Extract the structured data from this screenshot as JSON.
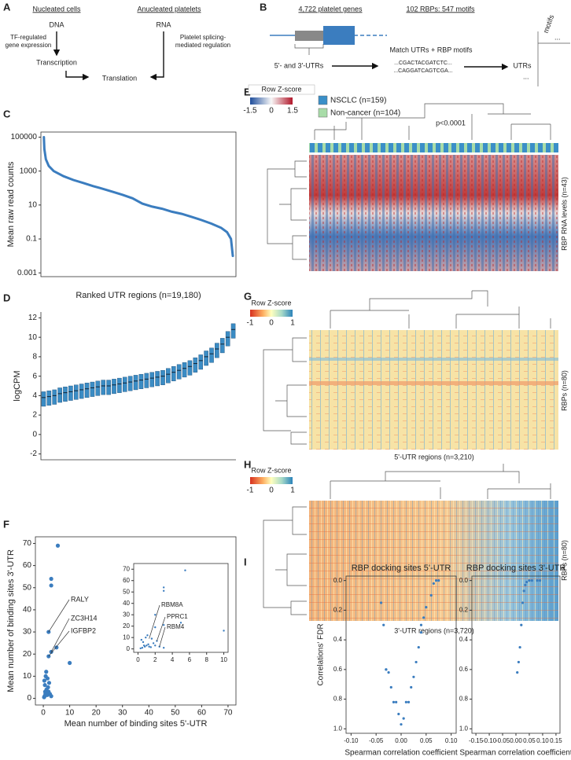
{
  "panel_labels": [
    "A",
    "B",
    "C",
    "D",
    "E",
    "F",
    "G",
    "H",
    "I"
  ],
  "diagram_a": {
    "left_title": "Nucleated cells",
    "right_title": "Anucleated platelets",
    "left_node": "DNA",
    "right_node": "RNA",
    "left_note": [
      "TF-regulated",
      "gene expression"
    ],
    "right_note": [
      "Platelet splicing-",
      "mediated regulation"
    ],
    "middle_node": "Transcription",
    "bottom_node": "Translation"
  },
  "diagram_b": {
    "genes": "4,722 platelet genes",
    "motifs_title": "102 RBPs: 547 motifs",
    "utrs": "5'- and 3'-UTRs",
    "match": "Match UTRs + RBP motifs",
    "sequences": [
      "...CGACTACGATCTC...",
      "...CAGGATCAGTCGA..."
    ],
    "matrix_rows": "UTRs",
    "matrix_cols": "motifs"
  },
  "heatmap_e": {
    "colorbar_title": "Row Z-score",
    "colorbar_ticks": [
      -1.5,
      0,
      1.5
    ],
    "legend": [
      {
        "name": "NSCLC (n=159)",
        "color": "#3a8fc8"
      },
      {
        "name": "Non-cancer (n=104)",
        "color": "#a8dca8"
      }
    ],
    "pvalue": "p<0.0001",
    "row_label": "RBP RNA levels (n=43)"
  },
  "heatmap_g": {
    "colorbar_title": "Row Z-score",
    "colorbar_ticks": [
      -1,
      0,
      1
    ],
    "row_label": "RBPs (n=80)",
    "column_label": "5'-UTR regions (n=3,210)"
  },
  "heatmap_h": {
    "colorbar_title": "Row Z-score",
    "colorbar_ticks": [
      -1,
      0,
      1
    ],
    "row_label": "RBPs (n=80)",
    "column_label": "3'-UTR regions (n=3,720)"
  },
  "chart_data": [
    {
      "type": "line",
      "ylabel": "Mean raw read counts",
      "xlabel": "Ranked UTR regions (n=19,180)",
      "log_y": true,
      "color": "#3b7dbf",
      "x": [
        1,
        50,
        200,
        500,
        1000,
        2000,
        3000,
        4000,
        5000,
        6000,
        7000,
        8000,
        9000,
        10000,
        11000,
        12000,
        13000,
        14000,
        15000,
        16000,
        17000,
        18000,
        18600,
        19000,
        19180
      ],
      "values": [
        100000,
        20000,
        5000,
        2000,
        1000,
        500,
        300,
        200,
        130,
        90,
        60,
        40,
        25,
        12,
        8,
        6,
        4,
        3,
        2,
        1.3,
        0.8,
        0.45,
        0.25,
        0.1,
        0.01
      ],
      "xlim": [
        -300,
        19500
      ],
      "ylim": [
        0.0006,
        200000
      ],
      "yticks": [
        0.001,
        0.1,
        10,
        1000,
        100000
      ]
    },
    {
      "type": "box",
      "ylabel": "logCPM",
      "color": "#3b8cc4",
      "categories": [
        null,
        null,
        null,
        null,
        null,
        null,
        null,
        null,
        null,
        null,
        null,
        null,
        null,
        null,
        null,
        null,
        null,
        null,
        null,
        null,
        null,
        null,
        null,
        null,
        null,
        null,
        null,
        null,
        null,
        null,
        null,
        null,
        null,
        null,
        null,
        null
      ],
      "q1": [
        2.9,
        3.0,
        3.1,
        3.3,
        3.4,
        3.5,
        3.6,
        3.7,
        3.8,
        3.9,
        4.0,
        4.1,
        4.1,
        4.2,
        4.3,
        4.4,
        4.5,
        4.6,
        4.7,
        4.8,
        4.9,
        5.0,
        5.1,
        5.3,
        5.5,
        5.7,
        5.9,
        6.1,
        6.4,
        6.7,
        7.1,
        7.4,
        7.9,
        8.4,
        9.1,
        9.9
      ],
      "median": [
        3.8,
        3.9,
        4.0,
        4.2,
        4.3,
        4.4,
        4.5,
        4.6,
        4.7,
        4.8,
        4.9,
        5.0,
        5.0,
        5.1,
        5.2,
        5.3,
        5.4,
        5.5,
        5.6,
        5.7,
        5.8,
        5.9,
        6.0,
        6.2,
        6.4,
        6.6,
        6.8,
        7.0,
        7.3,
        7.6,
        8.0,
        8.3,
        8.8,
        9.3,
        10.0,
        10.8
      ],
      "q3": [
        4.4,
        4.5,
        4.6,
        4.8,
        4.9,
        5.0,
        5.1,
        5.2,
        5.3,
        5.4,
        5.5,
        5.6,
        5.6,
        5.7,
        5.8,
        5.9,
        6.0,
        6.1,
        6.2,
        6.3,
        6.4,
        6.5,
        6.6,
        6.8,
        7.0,
        7.2,
        7.4,
        7.6,
        7.9,
        8.2,
        8.6,
        8.9,
        9.4,
        9.9,
        10.6,
        11.4
      ],
      "ylim": [
        -2.6,
        12.6
      ],
      "yticks": [
        -2,
        0,
        2,
        4,
        6,
        8,
        10,
        12
      ]
    },
    {
      "type": "scatter",
      "ylabel": "Mean number of binding sites 3'-UTR",
      "xlabel": "Mean number of binding sites 5'-UTR",
      "color": "#3b7dbf",
      "x": [
        0.3,
        0.5,
        0.8,
        1,
        1.2,
        1.5,
        0.6,
        0.4,
        1.8,
        2,
        2.5,
        3,
        0.9,
        1.1,
        0.7,
        2.2,
        5.5,
        3,
        3,
        2,
        5,
        3,
        2,
        10,
        1.3,
        1.6
      ],
      "values": [
        0.5,
        1,
        2,
        3,
        4,
        1.5,
        6,
        8,
        5,
        3,
        2,
        1,
        10,
        12,
        3,
        7,
        69,
        54,
        51,
        30,
        23,
        21,
        19,
        16,
        2,
        9
      ],
      "xlim": [
        -3,
        73
      ],
      "ylim": [
        -3,
        73
      ],
      "xticks": [
        0,
        10,
        20,
        30,
        40,
        50,
        60,
        70
      ],
      "yticks": [
        0,
        10,
        20,
        30,
        40,
        50,
        60,
        70
      ],
      "annotations": [
        "RALY",
        "ZC3H14",
        "IGFBP2"
      ],
      "inset": {
        "xlim": [
          -0.5,
          10.5
        ],
        "ylim": [
          -3,
          75
        ],
        "xticks": [
          0,
          2,
          4,
          6,
          8,
          10
        ],
        "yticks": [
          0,
          10,
          20,
          30,
          40,
          50,
          60,
          70
        ],
        "annotations": [
          "RBM8A",
          "PPRC1",
          "RBM4"
        ]
      }
    },
    {
      "type": "scatter",
      "title": "RBP docking sites 5'-UTR",
      "ylabel": "Correlations' FDR",
      "xlabel": "Spearman correlation coefficient",
      "color": "#3b7dbf",
      "x": [
        -0.04,
        -0.035,
        -0.03,
        -0.025,
        -0.02,
        -0.015,
        -0.01,
        -0.005,
        0,
        0.005,
        0.01,
        0.015,
        0.02,
        0.025,
        0.03,
        0.035,
        0.04,
        0.045,
        0.05,
        0.06,
        0.065,
        0.07,
        0.075,
        -0.03,
        0.04
      ],
      "values": [
        0.15,
        0.3,
        0.6,
        0.62,
        0.72,
        0.82,
        0.82,
        0.9,
        0.97,
        0.93,
        0.82,
        0.82,
        0.72,
        0.65,
        0.55,
        0.45,
        0.35,
        0.25,
        0.18,
        0.1,
        0.02,
        0,
        0,
        0.6,
        0.3
      ],
      "xlim": [
        -0.11,
        0.11
      ],
      "ylim": [
        1.03,
        -0.03
      ],
      "xticks": [
        {
          "value": -0.1,
          "label": "-0.10"
        },
        {
          "value": -0.05,
          "label": "-0.05"
        },
        {
          "value": 0,
          "label": "0.00"
        },
        {
          "value": 0.05,
          "label": "0.05"
        },
        {
          "value": 0.1,
          "label": "0.10"
        }
      ],
      "yticks": [
        {
          "value": 0,
          "label": "0.0"
        },
        {
          "value": 0.2,
          "label": "0.2"
        },
        {
          "value": 0.4,
          "label": "0.4"
        },
        {
          "value": 0.6,
          "label": "0.6"
        },
        {
          "value": 0.8,
          "label": "0.8"
        },
        {
          "value": 1,
          "label": "1.0"
        }
      ]
    },
    {
      "type": "scatter",
      "title": "RBP docking sites 3'-UTR",
      "xlabel": "Spearman correlation coefficient",
      "color": "#3b7dbf",
      "x": [
        0.005,
        0.01,
        0.015,
        0.02,
        0.025,
        0.03,
        0.035,
        0.04,
        0.05,
        0.06,
        0.08,
        0.09
      ],
      "values": [
        0.62,
        0.55,
        0.45,
        0.3,
        0.15,
        0.07,
        0.03,
        0.01,
        0,
        0,
        0,
        0
      ],
      "xlim": [
        -0.165,
        0.165
      ],
      "ylim": [
        1.03,
        -0.03
      ],
      "xticks": [
        {
          "value": -0.15,
          "label": "-0.15"
        },
        {
          "value": -0.1,
          "label": "-0.10"
        },
        {
          "value": -0.05,
          "label": "-0.05"
        },
        {
          "value": 0,
          "label": "0.00"
        },
        {
          "value": 0.05,
          "label": "0.05"
        },
        {
          "value": 0.1,
          "label": "0.10"
        },
        {
          "value": 0.15,
          "label": "0.15"
        }
      ],
      "yticks": [
        {
          "value": 0,
          "label": "0.0"
        },
        {
          "value": 0.2,
          "label": "0.2"
        },
        {
          "value": 0.4,
          "label": "0.4"
        },
        {
          "value": 0.6,
          "label": "0.6"
        },
        {
          "value": 0.8,
          "label": "0.8"
        },
        {
          "value": 1,
          "label": "1.0"
        }
      ]
    }
  ]
}
